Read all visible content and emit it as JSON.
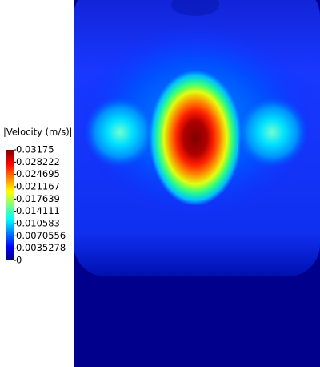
{
  "chart_data": {
    "type": "contour",
    "title": "|Velocity (m/s)|",
    "colormap": "jet",
    "clim": [
      0,
      0.03175
    ],
    "cticks": [
      0.03175,
      0.028222,
      0.024695,
      0.021167,
      0.017639,
      0.014111,
      0.010583,
      0.0070556,
      0.0035278,
      0
    ]
  }
}
